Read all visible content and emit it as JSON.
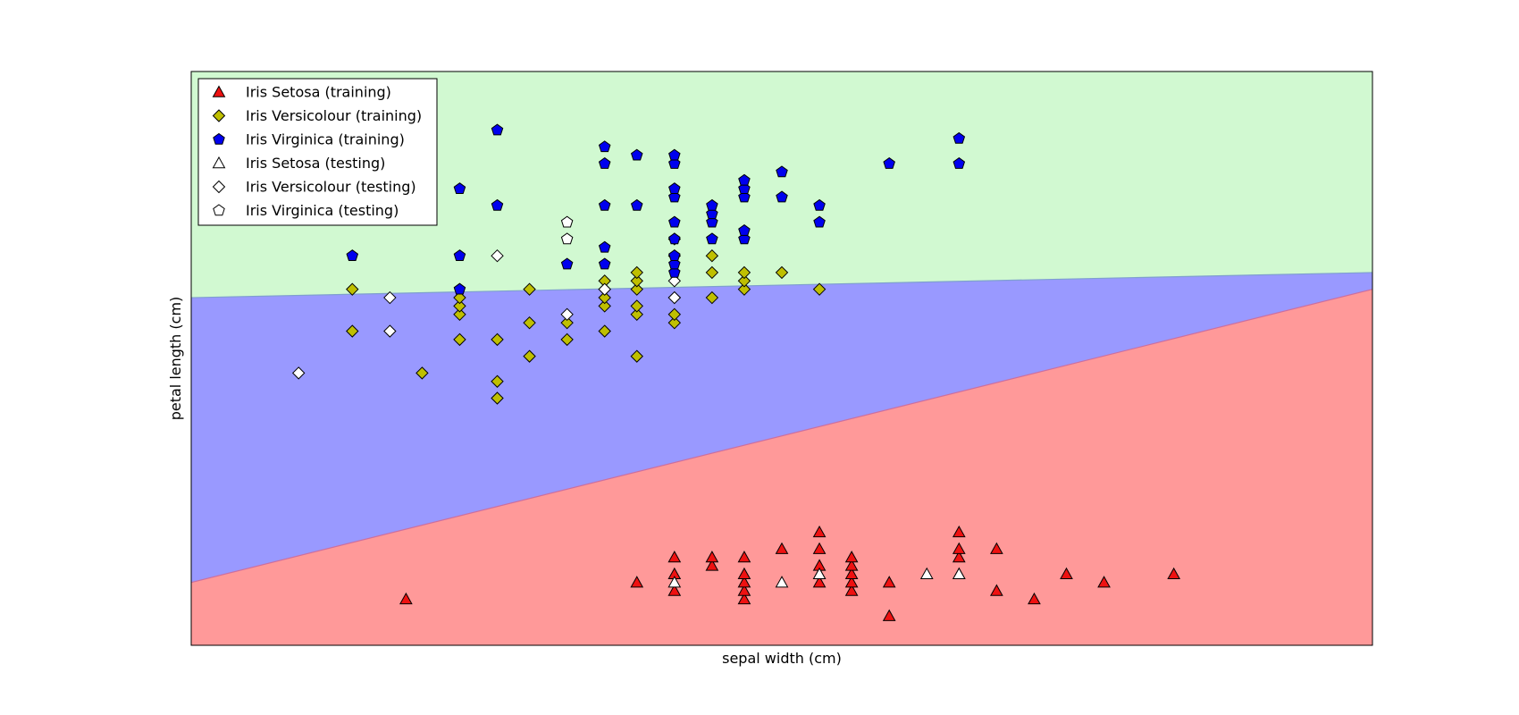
{
  "chart_data": {
    "type": "scatter",
    "title": "",
    "xlabel": "sepal width (cm)",
    "ylabel": "petal length (cm)",
    "xlim": [
      1.9,
      4.1
    ],
    "ylim": [
      0.75,
      7.6
    ],
    "grid": false,
    "legend_position": "top-left",
    "regions": [
      {
        "name": "setosa-region",
        "color": "#ff9999"
      },
      {
        "name": "versicolour-region",
        "color": "#9999ff"
      },
      {
        "name": "virginica-region",
        "color": "#d1f9d1"
      }
    ],
    "boundaries": {
      "lower": {
        "x": [
          1.9,
          4.1
        ],
        "y": [
          1.5,
          5.0
        ]
      },
      "upper": {
        "x": [
          1.9,
          4.1
        ],
        "y": [
          4.9,
          5.2
        ]
      }
    },
    "legend": [
      {
        "label": "Iris Setosa (training)",
        "marker": "triangle",
        "color": "#ee1111"
      },
      {
        "label": "Iris Versicolour (training)",
        "marker": "diamond",
        "color": "#bfbf00"
      },
      {
        "label": "Iris Virginica (training)",
        "marker": "pentagon",
        "color": "#0000ee"
      },
      {
        "label": "Iris Setosa (testing)",
        "marker": "triangle",
        "color": "#ffffff"
      },
      {
        "label": "Iris Versicolour (testing)",
        "marker": "diamond",
        "color": "#ffffff"
      },
      {
        "label": "Iris Virginica (testing)",
        "marker": "pentagon",
        "color": "#ffffff"
      }
    ],
    "series": [
      {
        "name": "Iris Setosa (training)",
        "marker": "triangle",
        "color": "#ee1111",
        "points": [
          [
            2.3,
            1.3
          ],
          [
            2.73,
            1.5
          ],
          [
            2.8,
            1.4
          ],
          [
            2.8,
            1.6
          ],
          [
            2.8,
            1.8
          ],
          [
            2.87,
            1.7
          ],
          [
            2.87,
            1.8
          ],
          [
            2.93,
            1.3
          ],
          [
            2.93,
            1.4
          ],
          [
            2.93,
            1.5
          ],
          [
            2.93,
            1.6
          ],
          [
            2.93,
            1.8
          ],
          [
            3.0,
            1.9
          ],
          [
            3.07,
            1.5
          ],
          [
            3.07,
            1.6
          ],
          [
            3.07,
            1.7
          ],
          [
            3.07,
            1.9
          ],
          [
            3.07,
            2.1
          ],
          [
            3.13,
            1.4
          ],
          [
            3.13,
            1.5
          ],
          [
            3.13,
            1.6
          ],
          [
            3.13,
            1.7
          ],
          [
            3.13,
            1.8
          ],
          [
            3.2,
            1.1
          ],
          [
            3.2,
            1.5
          ],
          [
            3.33,
            1.6
          ],
          [
            3.33,
            1.8
          ],
          [
            3.33,
            1.9
          ],
          [
            3.33,
            2.1
          ],
          [
            3.4,
            1.4
          ],
          [
            3.4,
            1.9
          ],
          [
            3.47,
            1.3
          ],
          [
            3.53,
            1.6
          ],
          [
            3.6,
            1.5
          ],
          [
            3.73,
            1.6
          ]
        ]
      },
      {
        "name": "Iris Setosa (testing)",
        "marker": "triangle",
        "color": "#ffffff",
        "points": [
          [
            2.8,
            1.5
          ],
          [
            3.0,
            1.5
          ],
          [
            3.07,
            1.6
          ],
          [
            3.27,
            1.6
          ],
          [
            3.33,
            1.6
          ]
        ]
      },
      {
        "name": "Iris Versicolour (training)",
        "marker": "diamond",
        "color": "#bfbf00",
        "points": [
          [
            2.2,
            4.5
          ],
          [
            2.2,
            5.0
          ],
          [
            2.33,
            4.0
          ],
          [
            2.4,
            4.4
          ],
          [
            2.4,
            4.7
          ],
          [
            2.4,
            4.8
          ],
          [
            2.4,
            4.9
          ],
          [
            2.47,
            3.7
          ],
          [
            2.47,
            3.9
          ],
          [
            2.47,
            4.4
          ],
          [
            2.53,
            4.2
          ],
          [
            2.53,
            4.6
          ],
          [
            2.53,
            5.0
          ],
          [
            2.6,
            4.4
          ],
          [
            2.6,
            4.6
          ],
          [
            2.67,
            4.5
          ],
          [
            2.67,
            4.8
          ],
          [
            2.67,
            4.9
          ],
          [
            2.67,
            5.0
          ],
          [
            2.67,
            5.1
          ],
          [
            2.73,
            4.2
          ],
          [
            2.73,
            4.7
          ],
          [
            2.73,
            4.8
          ],
          [
            2.73,
            5.0
          ],
          [
            2.73,
            5.1
          ],
          [
            2.73,
            5.2
          ],
          [
            2.8,
            4.6
          ],
          [
            2.8,
            4.7
          ],
          [
            2.8,
            4.9
          ],
          [
            2.8,
            5.4
          ],
          [
            2.8,
            5.6
          ],
          [
            2.87,
            4.9
          ],
          [
            2.87,
            5.2
          ],
          [
            2.87,
            5.4
          ],
          [
            2.93,
            5.0
          ],
          [
            2.93,
            5.1
          ],
          [
            2.93,
            5.2
          ],
          [
            3.0,
            5.2
          ],
          [
            3.07,
            5.0
          ]
        ]
      },
      {
        "name": "Iris Versicolour (testing)",
        "marker": "diamond",
        "color": "#ffffff",
        "points": [
          [
            2.1,
            4.0
          ],
          [
            2.27,
            4.5
          ],
          [
            2.27,
            4.9
          ],
          [
            2.47,
            5.4
          ],
          [
            2.6,
            4.7
          ],
          [
            2.67,
            5.0
          ],
          [
            2.8,
            4.9
          ],
          [
            2.8,
            5.1
          ]
        ]
      },
      {
        "name": "Iris Virginica (training)",
        "marker": "pentagon",
        "color": "#0000ee",
        "points": [
          [
            2.2,
            5.4
          ],
          [
            2.4,
            5.0
          ],
          [
            2.4,
            5.4
          ],
          [
            2.4,
            6.2
          ],
          [
            2.47,
            6.0
          ],
          [
            2.47,
            6.9
          ],
          [
            2.6,
            5.3
          ],
          [
            2.67,
            5.3
          ],
          [
            2.67,
            5.5
          ],
          [
            2.67,
            6.0
          ],
          [
            2.67,
            6.5
          ],
          [
            2.67,
            6.7
          ],
          [
            2.73,
            6.0
          ],
          [
            2.73,
            6.6
          ],
          [
            2.8,
            5.2
          ],
          [
            2.8,
            5.3
          ],
          [
            2.8,
            5.4
          ],
          [
            2.8,
            5.6
          ],
          [
            2.8,
            5.8
          ],
          [
            2.8,
            6.1
          ],
          [
            2.8,
            6.2
          ],
          [
            2.8,
            6.5
          ],
          [
            2.8,
            6.6
          ],
          [
            2.87,
            5.6
          ],
          [
            2.87,
            5.8
          ],
          [
            2.87,
            5.9
          ],
          [
            2.87,
            6.0
          ],
          [
            2.93,
            5.6
          ],
          [
            2.93,
            5.7
          ],
          [
            2.93,
            6.1
          ],
          [
            2.93,
            6.2
          ],
          [
            2.93,
            6.3
          ],
          [
            3.0,
            6.1
          ],
          [
            3.0,
            6.4
          ],
          [
            3.07,
            5.8
          ],
          [
            3.07,
            6.0
          ],
          [
            3.2,
            6.5
          ],
          [
            3.33,
            6.5
          ],
          [
            3.33,
            6.8
          ]
        ]
      },
      {
        "name": "Iris Virginica (testing)",
        "marker": "pentagon",
        "color": "#ffffff",
        "points": [
          [
            2.6,
            5.6
          ],
          [
            2.6,
            5.8
          ]
        ]
      }
    ]
  }
}
